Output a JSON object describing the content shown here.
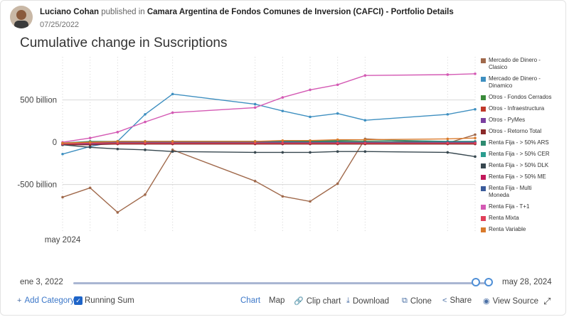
{
  "header": {
    "author": "Luciano Cohan",
    "published_text": "published in",
    "publication": "Camara Argentina de Fondos Comunes de Inversion (CAFCI)",
    "separator": " - ",
    "page": "Portfolio Details",
    "date": "07/25/2022"
  },
  "chart_data": {
    "type": "line",
    "title": "Cumulative change in Suscriptions",
    "y_ticks": [
      {
        "value": 500,
        "label": "500 billion"
      },
      {
        "value": 0,
        "label": "0"
      },
      {
        "value": -500,
        "label": "-500 billion"
      }
    ],
    "x_tick_label": "may 2024",
    "ylim": [
      -1050,
      1010
    ],
    "x": [
      0,
      1,
      2,
      3,
      4,
      5,
      6,
      7,
      8,
      9,
      10,
      11,
      12,
      13,
      14,
      15
    ],
    "series": [
      {
        "name": "Mercado de Dinero - Clasico",
        "color": "#a0694b",
        "values": [
          -650,
          -540,
          -830,
          -620,
          -90,
          null,
          null,
          -460,
          -640,
          -700,
          -490,
          40,
          null,
          null,
          -10,
          90
        ]
      },
      {
        "name": "Mercado de Dinero - Dinamico",
        "color": "#3e8fc0",
        "values": [
          -140,
          -50,
          10,
          330,
          570,
          null,
          null,
          450,
          370,
          300,
          340,
          260,
          null,
          null,
          330,
          390
        ]
      },
      {
        "name": "Otros - Fondos Cerrados",
        "color": "#3a8a3a",
        "values": [
          -20,
          0,
          10,
          10,
          10,
          null,
          null,
          10,
          10,
          10,
          10,
          10,
          null,
          null,
          0,
          0
        ]
      },
      {
        "name": "Otros - Infraestructura",
        "color": "#c0392b",
        "values": [
          -30,
          -20,
          -20,
          -20,
          -20,
          null,
          null,
          -20,
          -20,
          -20,
          -20,
          -20,
          null,
          null,
          -20,
          -20
        ]
      },
      {
        "name": "Otros - PyMes",
        "color": "#7b3fa0",
        "values": [
          -30,
          -20,
          -10,
          -10,
          -10,
          null,
          null,
          -10,
          -10,
          -10,
          -10,
          -10,
          null,
          null,
          -10,
          -10
        ]
      },
      {
        "name": "Otros - Retorno Total",
        "color": "#8b2a2a",
        "values": [
          -30,
          -30,
          -20,
          -20,
          -20,
          null,
          null,
          -20,
          -20,
          -20,
          -20,
          -20,
          null,
          null,
          -20,
          -20
        ]
      },
      {
        "name": "Renta Fija - > 50% ARS",
        "color": "#2e8b70",
        "values": [
          -10,
          10,
          10,
          10,
          10,
          null,
          null,
          10,
          10,
          20,
          20,
          30,
          null,
          null,
          10,
          10
        ]
      },
      {
        "name": "Renta Fija - > 50% CER",
        "color": "#2a9d8f",
        "values": [
          -20,
          0,
          0,
          0,
          0,
          null,
          null,
          0,
          0,
          0,
          0,
          0,
          null,
          null,
          0,
          0
        ]
      },
      {
        "name": "Renta Fija - > 50% DLK",
        "color": "#37474f",
        "values": [
          -30,
          -60,
          -80,
          -90,
          -110,
          null,
          null,
          -120,
          -120,
          -120,
          -110,
          -110,
          null,
          null,
          -120,
          -170
        ]
      },
      {
        "name": "Renta Fija - > 50% ME",
        "color": "#c2185b",
        "values": [
          -20,
          -10,
          -10,
          -10,
          -10,
          null,
          null,
          -10,
          -10,
          -10,
          -10,
          -10,
          null,
          null,
          -10,
          -10
        ]
      },
      {
        "name": "Renta Fija - Multi Moneda",
        "color": "#3b5b9a",
        "values": [
          -20,
          -10,
          0,
          0,
          0,
          null,
          null,
          0,
          0,
          0,
          0,
          0,
          null,
          null,
          0,
          0
        ]
      },
      {
        "name": "Renta Fija - T+1",
        "color": "#d45ab4",
        "values": [
          0,
          50,
          120,
          240,
          350,
          null,
          null,
          410,
          530,
          620,
          680,
          790,
          null,
          null,
          800,
          810
        ]
      },
      {
        "name": "Renta Mixta",
        "color": "#e0405a",
        "values": [
          -20,
          -10,
          -10,
          -10,
          -10,
          null,
          null,
          -10,
          -10,
          -10,
          -10,
          -10,
          null,
          null,
          -10,
          -10
        ]
      },
      {
        "name": "Renta Variable",
        "color": "#d97a2b",
        "values": [
          -10,
          0,
          10,
          10,
          10,
          null,
          null,
          10,
          20,
          20,
          30,
          30,
          null,
          null,
          40,
          50
        ]
      }
    ]
  },
  "slider": {
    "start_label": "ene 3, 2022",
    "end_label": "may 28, 2024",
    "start_value": 0.97,
    "end_value": 1.0
  },
  "footer": {
    "add_category": "Add Category",
    "running_sum": "Running Sum",
    "chart": "Chart",
    "map": "Map",
    "clip_chart": "Clip chart",
    "download": "Download",
    "clone": "Clone",
    "share": "Share",
    "view_source": "View Source"
  }
}
